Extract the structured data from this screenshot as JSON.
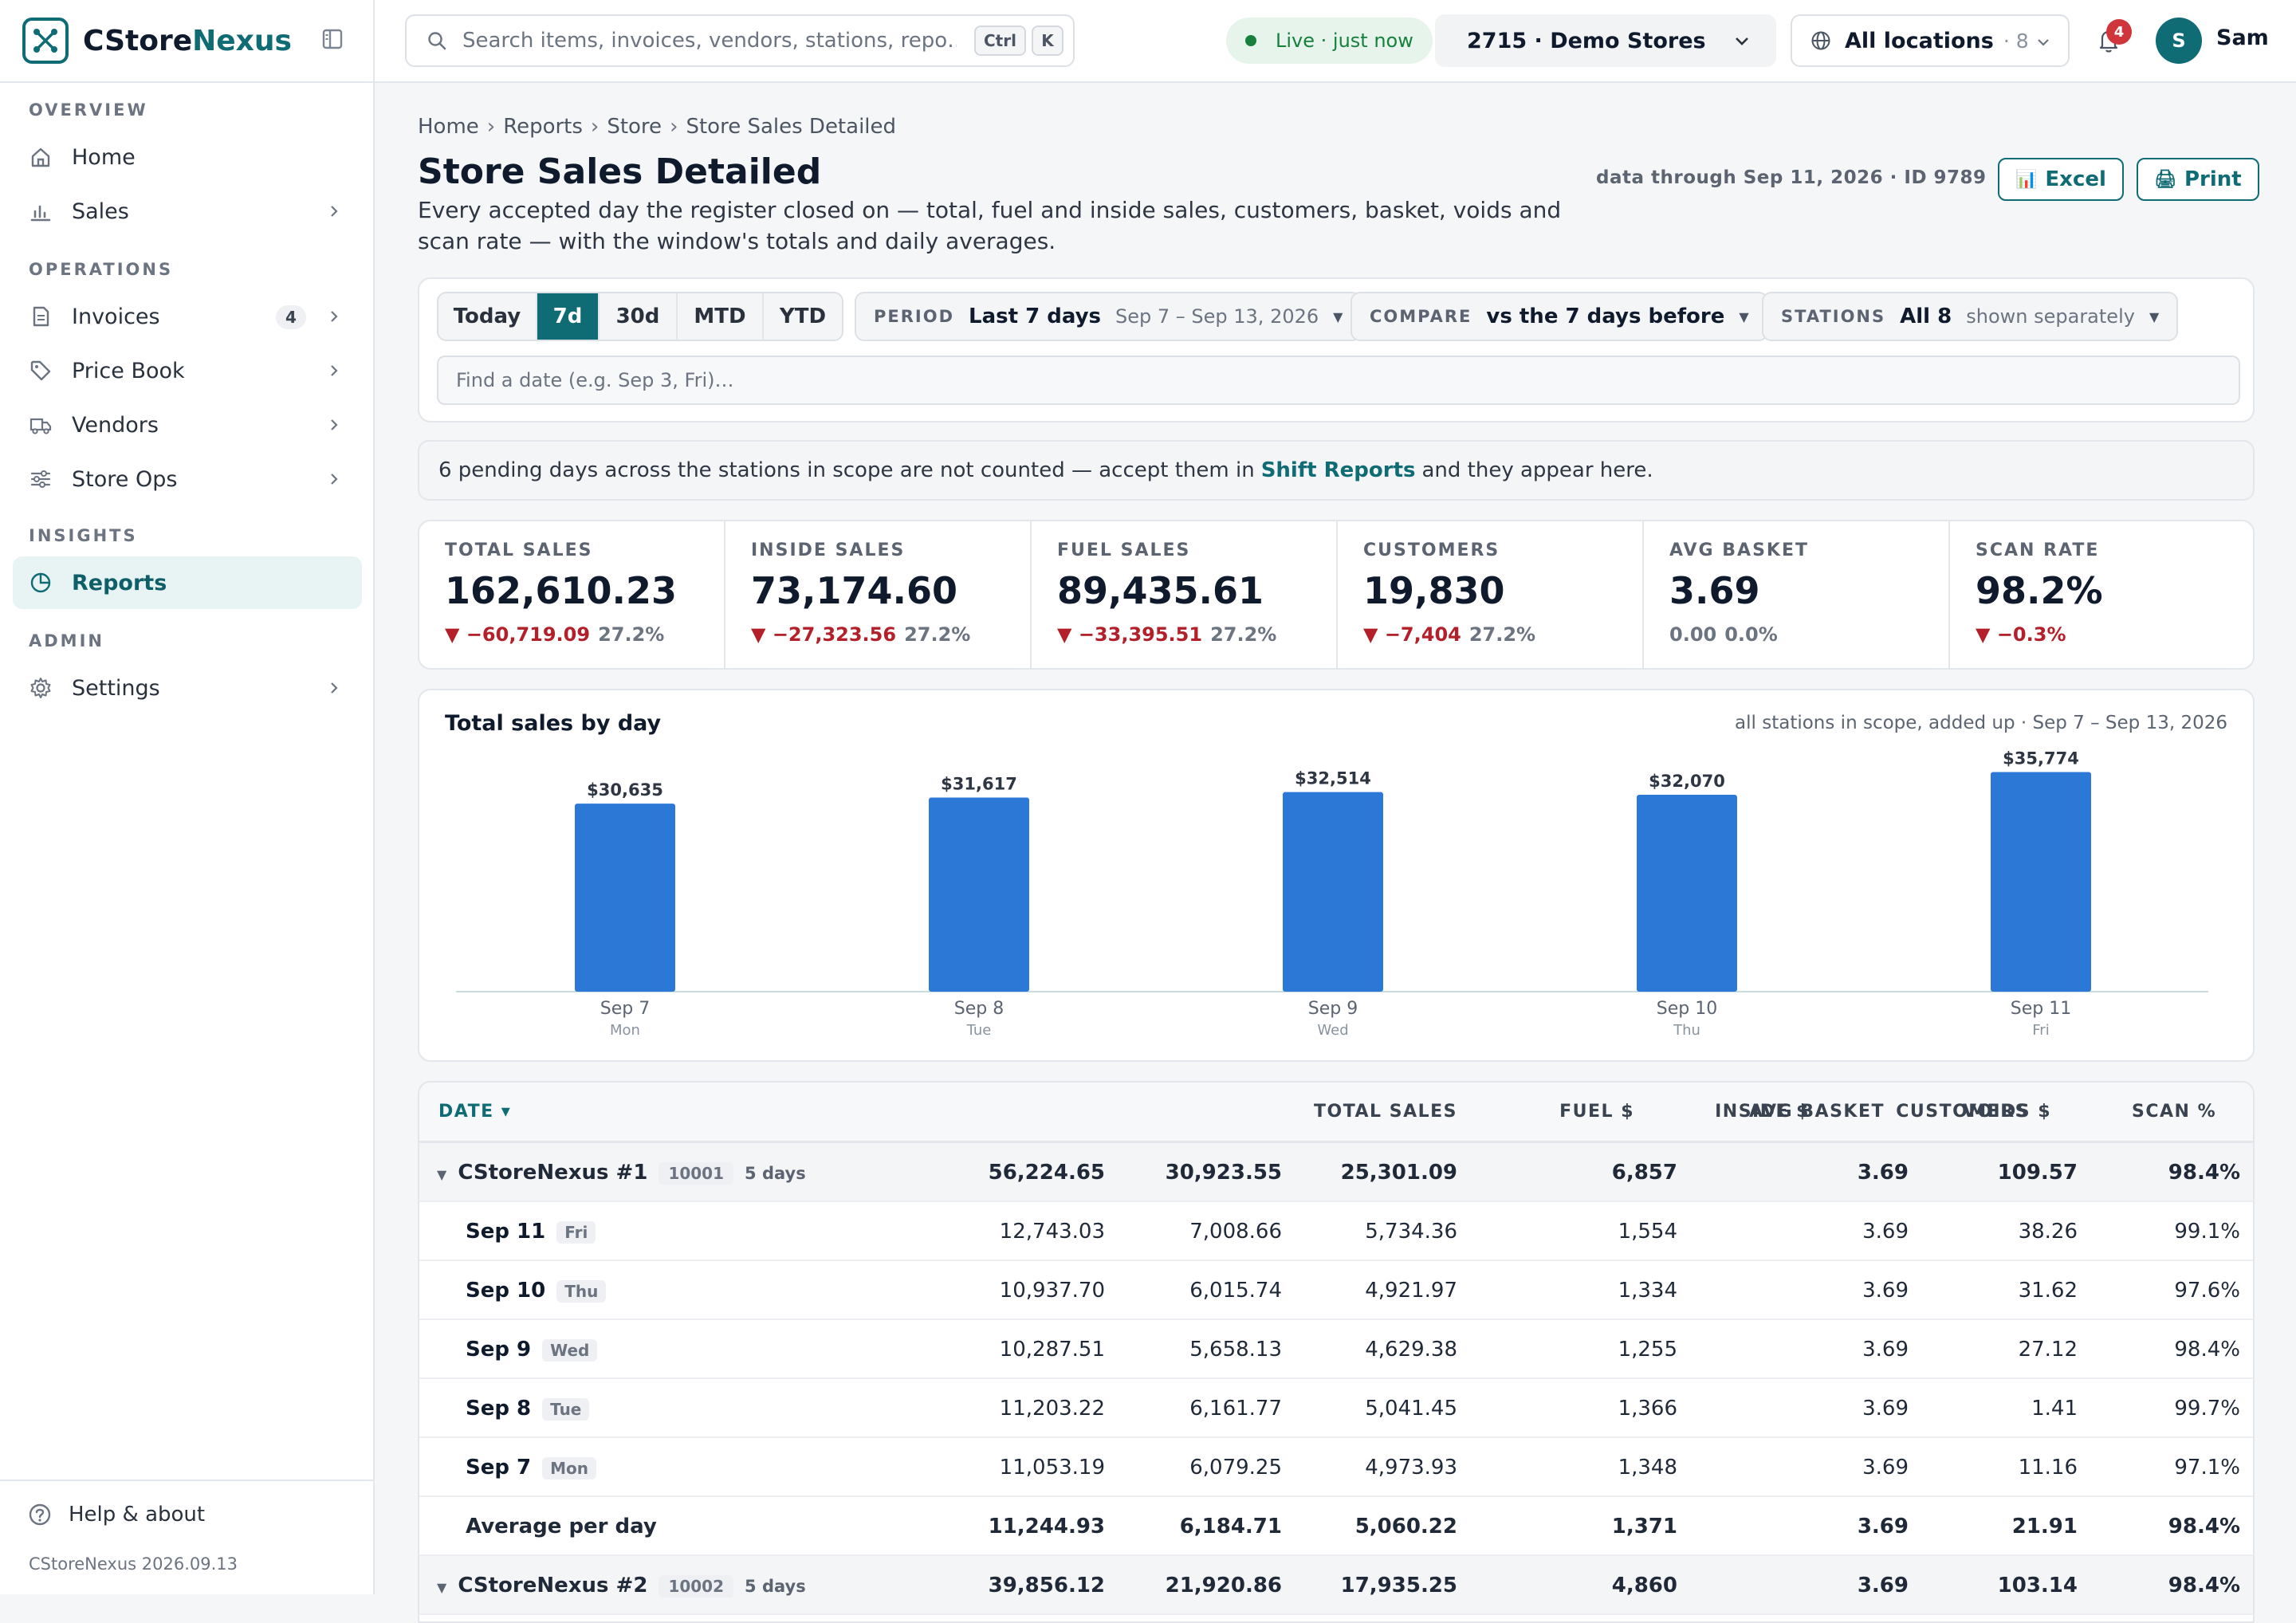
{
  "app": {
    "brand_a": "CStore",
    "brand_b": "Nexus",
    "version": "CStoreNexus 2026.09.13"
  },
  "sidebar": {
    "sections": [
      "OVERVIEW",
      "OPERATIONS",
      "INSIGHTS",
      "ADMIN"
    ],
    "items": [
      {
        "label": "Home",
        "icon": "home-icon"
      },
      {
        "label": "Sales",
        "icon": "bar-chart-icon"
      },
      {
        "label": "Invoices",
        "icon": "document-icon",
        "count": "4"
      },
      {
        "label": "Price Book",
        "icon": "tag-icon"
      },
      {
        "label": "Vendors",
        "icon": "truck-icon"
      },
      {
        "label": "Store Ops",
        "icon": "sliders-icon"
      },
      {
        "label": "Reports",
        "icon": "pie-chart-icon"
      },
      {
        "label": "Settings",
        "icon": "gear-icon"
      }
    ],
    "help": "Help & about"
  },
  "topbar": {
    "search_placeholder": "Search items, invoices, vendors, stations, repo…",
    "kbd": [
      "Ctrl",
      "K"
    ],
    "live": "Live · just now",
    "store": "2715 · Demo Stores",
    "locations": "All locations",
    "locations_count": "· 8",
    "notifications": "4",
    "avatar": "S",
    "user": "Sam"
  },
  "page": {
    "breadcrumb": [
      "Home",
      "Reports",
      "Store",
      "Store Sales Detailed"
    ],
    "title": "Store Sales Detailed",
    "description": "Every accepted day the register closed on — total, fuel and inside sales, customers, basket, voids and scan rate — with the window's totals and daily averages.",
    "data_through": "data through Sep 11, 2026 · ID 9789",
    "excel": "Excel",
    "print": "Print"
  },
  "filters": {
    "ranges": [
      "Today",
      "7d",
      "30d",
      "MTD",
      "YTD"
    ],
    "selected_range": "7d",
    "period": {
      "key": "PERIOD",
      "value": "Last 7 days",
      "sub": "Sep 7 – Sep 13, 2026"
    },
    "compare": {
      "key": "COMPARE",
      "value": "vs the 7 days before"
    },
    "stations": {
      "key": "STATIONS",
      "value": "All 8",
      "sub": "shown separately"
    },
    "date_placeholder": "Find a date (e.g. Sep 3, Fri)…"
  },
  "notice": {
    "pre": "6 pending days across the stations in scope are not counted — accept them in",
    "link": "Shift Reports",
    "post": "and they appear here."
  },
  "kpis": [
    {
      "title": "TOTAL SALES",
      "value": "162,610.23",
      "delta": "▼ −60,719.09",
      "pct": "27.2%"
    },
    {
      "title": "INSIDE SALES",
      "value": "73,174.60",
      "delta": "▼ −27,323.56",
      "pct": "27.2%"
    },
    {
      "title": "FUEL SALES",
      "value": "89,435.61",
      "delta": "▼ −33,395.51",
      "pct": "27.2%"
    },
    {
      "title": "CUSTOMERS",
      "value": "19,830",
      "delta": "▼ −7,404",
      "pct": "27.2%"
    },
    {
      "title": "AVG BASKET",
      "value": "3.69",
      "delta": "0.00",
      "pct": "0.0%"
    },
    {
      "title": "SCAN RATE",
      "value": "98.2%",
      "delta": "▼ −0.3%",
      "pct": ""
    }
  ],
  "chart_data": {
    "type": "bar",
    "title": "Total sales by day",
    "subtitle": "all stations in scope, added up · Sep 7 – Sep 13, 2026",
    "categories": [
      "Sep 7",
      "Sep 8",
      "Sep 9",
      "Sep 10",
      "Sep 11"
    ],
    "weekdays": [
      "Mon",
      "Tue",
      "Wed",
      "Thu",
      "Fri"
    ],
    "values": [
      30635,
      31617,
      32514,
      32070,
      35774
    ],
    "value_labels": [
      "$30,635",
      "$31,617",
      "$32,514",
      "$32,070",
      "$35,774"
    ],
    "color": "#2b78d6"
  },
  "table": {
    "headers": [
      "DATE ▾",
      "TOTAL SALES",
      "FUEL $",
      "INSIDE $",
      "CUSTOMERS",
      "AVG BASKET",
      "VOIDS $",
      "SCAN %"
    ],
    "groups": [
      {
        "name": "CStoreNexus #1",
        "id": "10001",
        "days": "5 days",
        "totals": [
          "56,224.65",
          "30,923.55",
          "25,301.09",
          "6,857",
          "3.69",
          "109.57",
          "98.4%"
        ],
        "rows": [
          {
            "date": "Sep 11",
            "wd": "Fri",
            "cells": [
              "12,743.03",
              "7,008.66",
              "5,734.36",
              "1,554",
              "3.69",
              "38.26",
              "99.1%"
            ]
          },
          {
            "date": "Sep 10",
            "wd": "Thu",
            "cells": [
              "10,937.70",
              "6,015.74",
              "4,921.97",
              "1,334",
              "3.69",
              "31.62",
              "97.6%"
            ]
          },
          {
            "date": "Sep 9",
            "wd": "Wed",
            "cells": [
              "10,287.51",
              "5,658.13",
              "4,629.38",
              "1,255",
              "3.69",
              "27.12",
              "98.4%"
            ]
          },
          {
            "date": "Sep 8",
            "wd": "Tue",
            "cells": [
              "11,203.22",
              "6,161.77",
              "5,041.45",
              "1,366",
              "3.69",
              "1.41",
              "99.7%"
            ]
          },
          {
            "date": "Sep 7",
            "wd": "Mon",
            "cells": [
              "11,053.19",
              "6,079.25",
              "4,973.93",
              "1,348",
              "3.69",
              "11.16",
              "97.1%"
            ]
          }
        ],
        "average": {
          "label": "Average per day",
          "cells": [
            "11,244.93",
            "6,184.71",
            "5,060.22",
            "1,371",
            "3.69",
            "21.91",
            "98.4%"
          ]
        }
      },
      {
        "name": "CStoreNexus #2",
        "id": "10002",
        "days": "5 days",
        "totals": [
          "39,856.12",
          "21,920.86",
          "17,935.25",
          "4,860",
          "3.69",
          "103.14",
          "98.4%"
        ]
      }
    ]
  }
}
